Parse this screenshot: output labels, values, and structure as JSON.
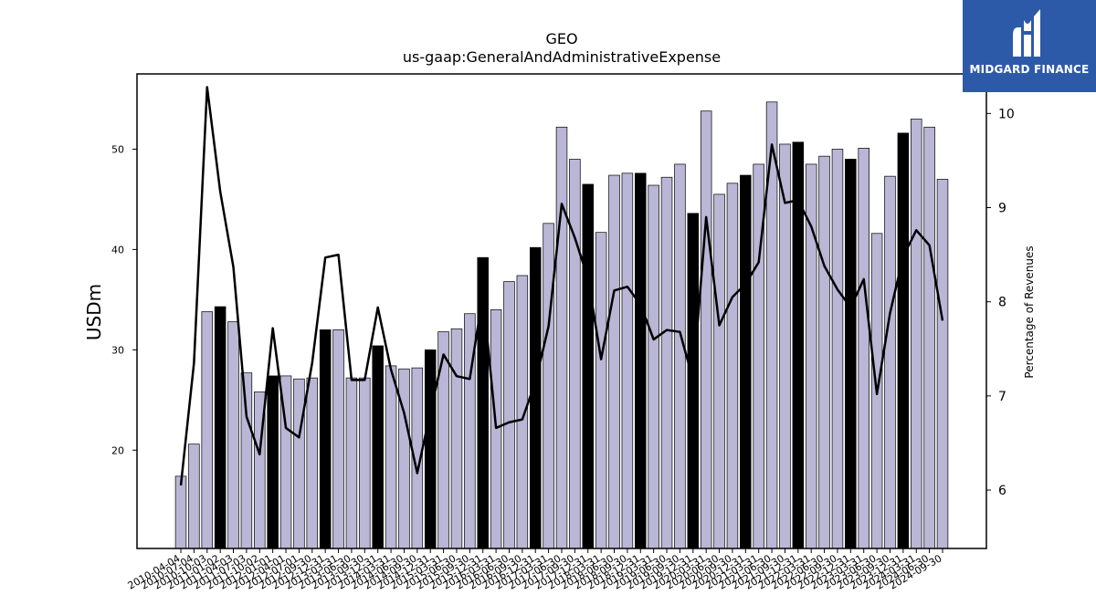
{
  "chart_data": {
    "type": "bar+line",
    "title": "GEO",
    "subtitle": "us-gaap:GeneralAndAdministrativeExpense",
    "ylabel_left": "USDm",
    "ylabel_right": "Percentage of Revenues",
    "ylim_left": [
      10.2,
      57.5
    ],
    "ylim_right": [
      5.38,
      10.42
    ],
    "yticks_left": [
      20,
      30,
      40,
      50
    ],
    "yticks_right": [
      6,
      7,
      8,
      9,
      10
    ],
    "categories": [
      "2010-04-04",
      "2010-07-04",
      "2010-10-03",
      "2011-01-02",
      "2011-04-03",
      "2011-07-03",
      "2011-10-02",
      "2012-01-01",
      "2012-04-01",
      "2012-07-01",
      "2012-09-30",
      "2012-12-31",
      "2013-03-31",
      "2013-06-30",
      "2013-09-30",
      "2013-12-31",
      "2014-03-31",
      "2014-06-30",
      "2014-09-30",
      "2014-12-31",
      "2015-03-31",
      "2015-06-30",
      "2015-09-30",
      "2015-12-31",
      "2016-03-31",
      "2016-06-30",
      "2016-09-30",
      "2016-12-31",
      "2017-03-31",
      "2017-06-30",
      "2017-09-30",
      "2017-12-31",
      "2018-03-31",
      "2018-06-30",
      "2018-09-30",
      "2018-12-31",
      "2019-03-31",
      "2019-06-30",
      "2019-09-30",
      "2019-12-31",
      "2020-03-31",
      "2020-06-30",
      "2020-09-30",
      "2020-12-31",
      "2021-03-31",
      "2021-06-30",
      "2021-09-30",
      "2021-12-31",
      "2022-03-31",
      "2022-06-30",
      "2022-09-30",
      "2022-12-31",
      "2023-03-31",
      "2023-06-30",
      "2023-09-30",
      "2023-12-31",
      "2024-03-31",
      "2024-06-30",
      "2024-09-30"
    ],
    "bar_values": [
      17.4,
      20.6,
      33.8,
      34.3,
      32.8,
      27.7,
      25.8,
      27.4,
      27.4,
      27.1,
      27.2,
      32.0,
      32.0,
      27.2,
      27.2,
      30.4,
      28.4,
      28.1,
      28.2,
      30.0,
      31.8,
      32.1,
      33.6,
      39.2,
      34.0,
      36.8,
      37.4,
      40.2,
      42.6,
      52.2,
      49.0,
      46.5,
      41.7,
      47.4,
      47.6,
      47.6,
      46.4,
      47.2,
      48.5,
      43.6,
      53.8,
      45.5,
      46.6,
      47.4,
      48.5,
      54.7,
      50.5,
      50.7,
      48.5,
      49.3,
      50.0,
      49.0,
      50.1,
      41.6,
      47.3,
      51.6,
      53.0,
      52.2,
      47.0
    ],
    "highlight_indices": [
      3,
      7,
      11,
      15,
      19,
      23,
      27,
      31,
      35,
      39,
      43,
      47,
      51,
      55
    ],
    "line_values": [
      6.05,
      7.35,
      10.28,
      9.17,
      8.37,
      6.78,
      6.38,
      7.72,
      6.66,
      6.56,
      7.35,
      8.47,
      8.5,
      7.17,
      7.17,
      7.94,
      7.28,
      6.82,
      6.18,
      6.83,
      7.44,
      7.21,
      7.18,
      8.08,
      6.66,
      6.72,
      6.75,
      7.15,
      7.74,
      9.04,
      8.68,
      8.25,
      7.39,
      8.12,
      8.16,
      7.97,
      7.6,
      7.7,
      7.68,
      7.17,
      8.9,
      7.75,
      8.05,
      8.19,
      8.42,
      9.67,
      9.05,
      9.08,
      8.8,
      8.38,
      8.13,
      7.94,
      8.24,
      7.02,
      7.88,
      8.48,
      8.76,
      8.6,
      7.8
    ],
    "colors": {
      "bar": "#bab6d6",
      "bar_highlight": "#000000",
      "bar_edge": "#000000",
      "line": "#000000"
    },
    "grid": false
  },
  "logo": {
    "text": "MIDGARD FINANCE",
    "icon": "midgard-logo-icon",
    "color": "#2d5aa8"
  }
}
